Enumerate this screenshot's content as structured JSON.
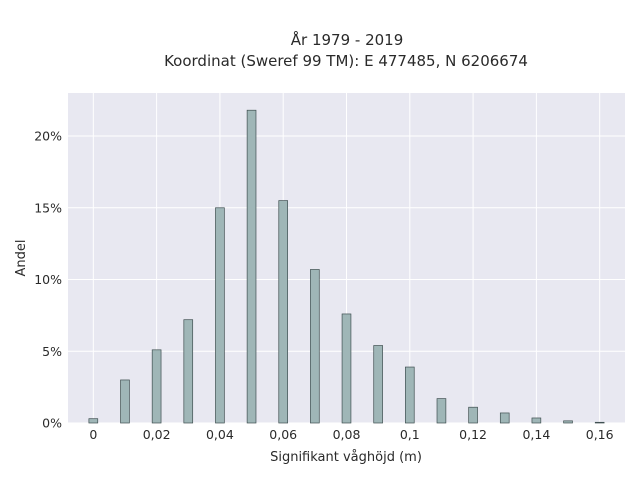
{
  "chart_data": {
    "type": "bar",
    "title": [
      "År 1979 - 2019",
      "Koordinat (Sweref 99 TM): E 477485, N 6206674"
    ],
    "xlabel": "Signifikant våghöjd (m)",
    "ylabel": "Andel",
    "x": [
      0,
      0.01,
      0.02,
      0.03,
      0.04,
      0.05,
      0.06,
      0.07,
      0.08,
      0.09,
      0.1,
      0.11,
      0.12,
      0.13,
      0.14,
      0.15,
      0.16
    ],
    "values": [
      0.3,
      3.0,
      5.1,
      7.2,
      15.0,
      21.8,
      15.5,
      10.7,
      7.6,
      5.4,
      3.9,
      1.7,
      1.1,
      0.7,
      0.35,
      0.15,
      0.05
    ],
    "xlim": [
      -0.008,
      0.168
    ],
    "ylim": [
      0,
      23
    ],
    "x_ticks": [
      0,
      0.02,
      0.04,
      0.06,
      0.08,
      0.1,
      0.12,
      0.14,
      0.16
    ],
    "x_tick_labels": [
      "0",
      "0,02",
      "0,04",
      "0,06",
      "0,08",
      "0,1",
      "0,12",
      "0,14",
      "0,16"
    ],
    "y_ticks": [
      0,
      5,
      10,
      15,
      20
    ],
    "y_tick_labels": [
      "0%",
      "5%",
      "10%",
      "15%",
      "20%"
    ],
    "grid": true,
    "bar_color": "#9fb6b7",
    "bar_edge_color": "#3f4f50",
    "plot_bg": "#e8e8f1",
    "grid_color": "#ffffff"
  }
}
